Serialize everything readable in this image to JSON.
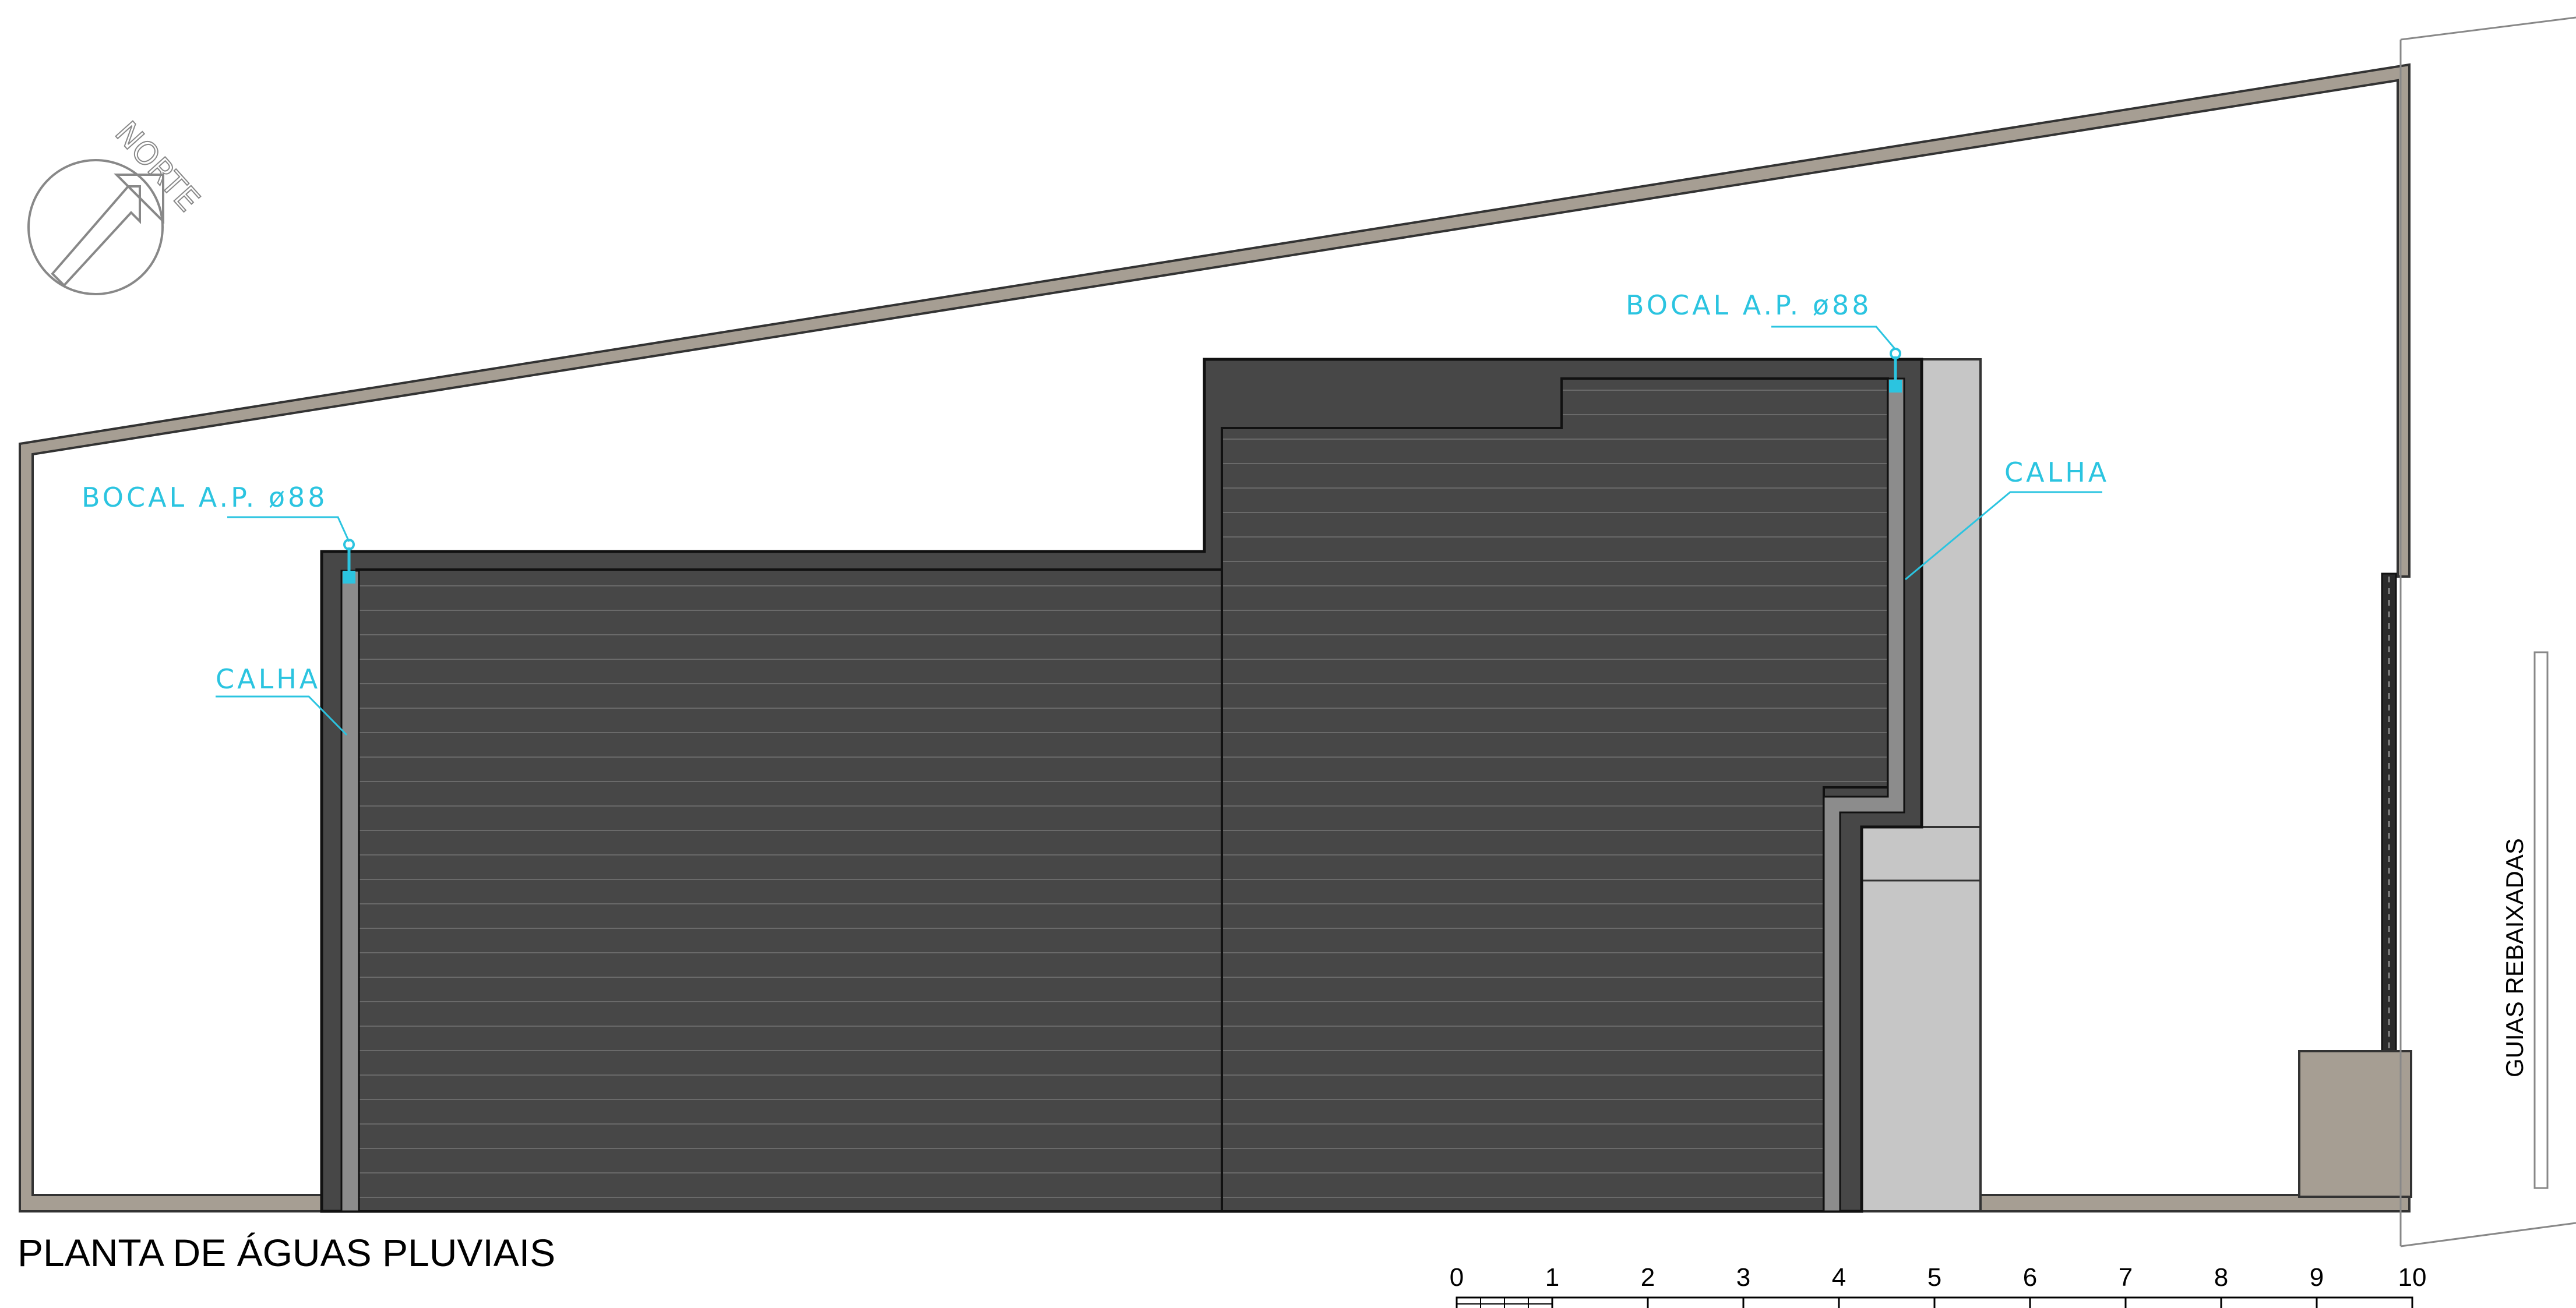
{
  "title": "PLANTA DE ÁGUAS PLUVIAIS",
  "north_label": "NORTE",
  "annotations": {
    "bocal_left": "BOCAL A.P. ø88",
    "bocal_right": "BOCAL A.P. ø88",
    "calha_left": "CALHA",
    "calha_right": "CALHA"
  },
  "street_label": "GUIAS REBAIXADAS",
  "scale_bar": {
    "ticks": [
      "0",
      "1",
      "2",
      "3",
      "4",
      "5",
      "6",
      "7",
      "8",
      "9",
      "10"
    ]
  },
  "colors": {
    "wall": "#a69e93",
    "roof": "#474747",
    "roof_line": "#6a6a6a",
    "light_area": "#c6c6c6",
    "gutter": "#8c8c8c",
    "annotation": "#2bc4e0"
  }
}
